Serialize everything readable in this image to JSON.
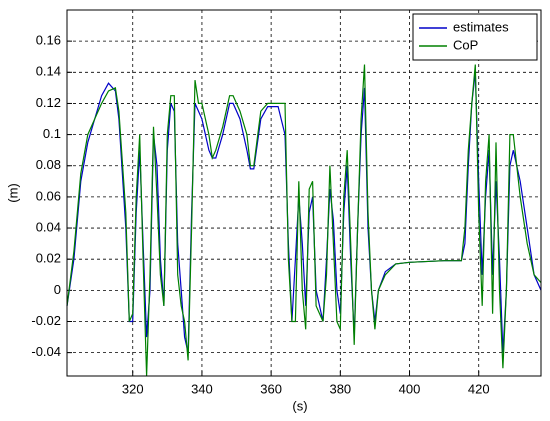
{
  "chart_data": {
    "type": "line",
    "xlabel": "(s)",
    "ylabel": "(m)",
    "x": [
      301,
      303,
      305,
      307,
      309,
      311,
      313,
      315,
      316,
      318,
      319,
      320,
      321,
      322,
      323,
      324,
      325,
      326,
      327,
      328,
      329,
      330,
      331,
      332,
      333,
      334,
      335,
      336,
      337,
      338,
      339,
      340,
      342,
      343,
      344,
      346,
      348,
      349,
      351,
      353,
      354,
      355,
      357,
      359,
      362,
      364,
      365,
      366,
      367,
      368,
      369,
      370,
      371,
      372,
      373,
      375,
      376,
      377,
      378,
      379,
      380,
      381,
      382,
      383,
      384,
      385,
      386,
      387,
      388,
      389,
      390,
      391,
      393,
      396,
      400,
      410,
      415,
      416,
      417,
      418,
      419,
      420,
      421,
      422,
      423,
      424,
      425,
      426,
      427,
      428,
      429,
      430,
      432,
      434,
      436,
      438
    ],
    "series": [
      {
        "name": "estimates",
        "color": "#0000c8",
        "values": [
          -0.01,
          0.02,
          0.07,
          0.095,
          0.11,
          0.125,
          0.133,
          0.128,
          0.11,
          0.04,
          -0.02,
          -0.02,
          0.05,
          0.09,
          0.03,
          -0.03,
          0.0,
          0.1,
          0.08,
          0.02,
          -0.01,
          0.09,
          0.12,
          0.115,
          0.03,
          0.0,
          -0.03,
          -0.04,
          0.05,
          0.12,
          0.115,
          0.11,
          0.09,
          0.085,
          0.085,
          0.1,
          0.12,
          0.12,
          0.11,
          0.09,
          0.078,
          0.078,
          0.11,
          0.118,
          0.118,
          0.1,
          0.03,
          -0.02,
          0.02,
          0.06,
          0.03,
          -0.01,
          0.05,
          0.06,
          0.0,
          -0.02,
          0.02,
          0.065,
          0.045,
          0.0,
          -0.015,
          0.05,
          0.08,
          0.02,
          -0.03,
          0.04,
          0.1,
          0.13,
          0.04,
          0.0,
          -0.02,
          0.0,
          0.012,
          0.017,
          0.018,
          0.019,
          0.019,
          0.03,
          0.08,
          0.12,
          0.14,
          0.07,
          0.01,
          0.06,
          0.09,
          0.01,
          0.07,
          0.02,
          -0.04,
          0.0,
          0.08,
          0.09,
          0.07,
          0.04,
          0.01,
          0.0
        ]
      },
      {
        "name": "CoP",
        "color": "#008000",
        "values": [
          -0.01,
          0.025,
          0.075,
          0.1,
          0.11,
          0.12,
          0.128,
          0.13,
          0.115,
          0.05,
          -0.02,
          -0.015,
          0.06,
          0.1,
          0.02,
          -0.055,
          0.01,
          0.105,
          0.06,
          0.01,
          -0.01,
          0.1,
          0.125,
          0.125,
          0.01,
          -0.01,
          -0.02,
          -0.045,
          0.04,
          0.135,
          0.12,
          0.12,
          0.1,
          0.085,
          0.09,
          0.105,
          0.125,
          0.125,
          0.115,
          0.1,
          0.08,
          0.08,
          0.115,
          0.12,
          0.12,
          0.12,
          0.02,
          -0.02,
          -0.02,
          0.07,
          0.0,
          -0.025,
          0.065,
          0.07,
          -0.01,
          -0.02,
          0.01,
          0.08,
          0.03,
          -0.02,
          -0.025,
          0.06,
          0.09,
          0.03,
          -0.035,
          0.04,
          0.11,
          0.145,
          0.05,
          0.0,
          -0.025,
          0.0,
          0.01,
          0.017,
          0.018,
          0.019,
          0.019,
          0.04,
          0.09,
          0.12,
          0.145,
          0.05,
          -0.01,
          0.07,
          0.1,
          -0.015,
          0.095,
          0.0,
          -0.05,
          0.0,
          0.1,
          0.1,
          0.06,
          0.03,
          0.01,
          0.005
        ]
      }
    ],
    "xlim": [
      301,
      438
    ],
    "xticks": [
      320,
      340,
      360,
      380,
      400,
      420
    ],
    "ylim": [
      -0.055,
      0.18
    ],
    "yticks": [
      -0.04,
      -0.02,
      0,
      0.02,
      0.04,
      0.06,
      0.08,
      0.1,
      0.12,
      0.14,
      0.16
    ],
    "grid": true,
    "legend": "top-right"
  }
}
